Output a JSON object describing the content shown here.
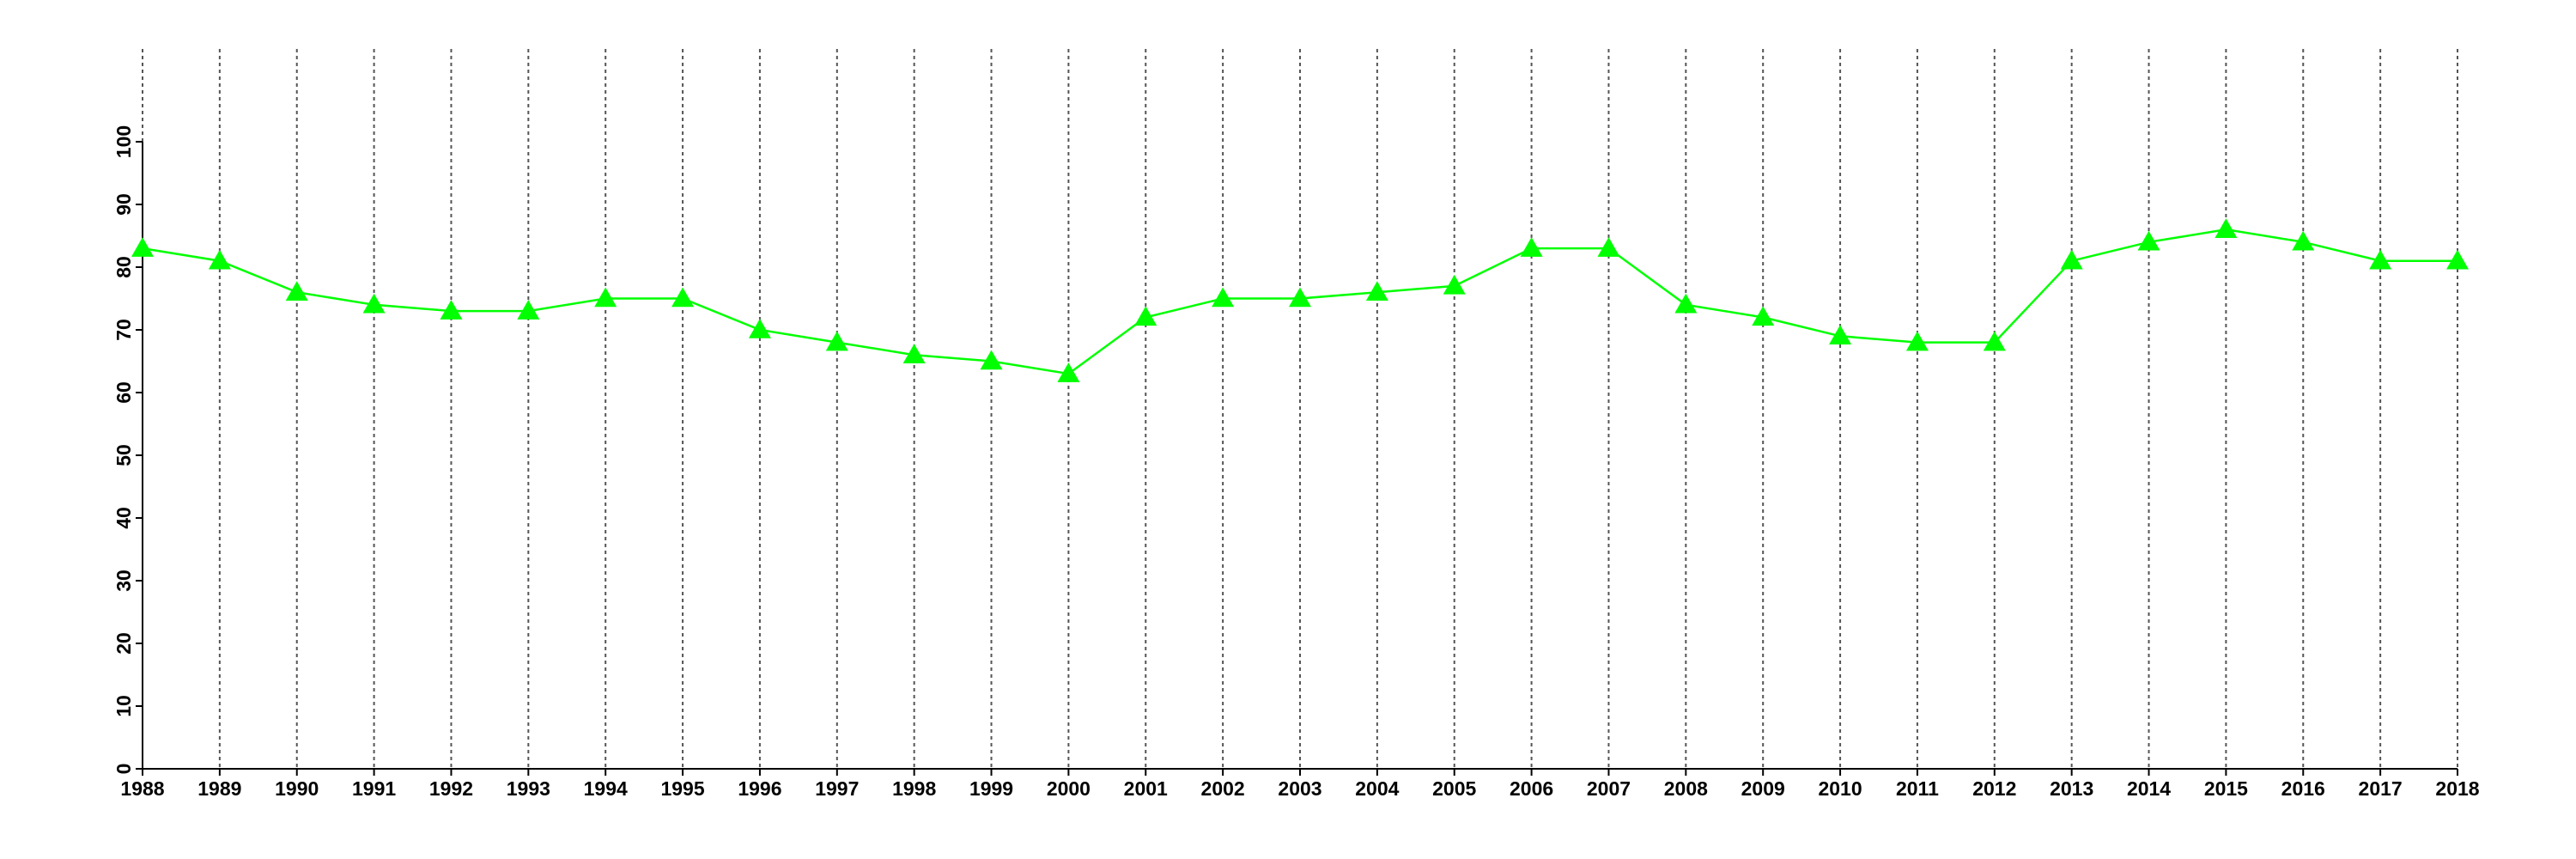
{
  "chart_data": {
    "type": "line",
    "x": [
      1988,
      1989,
      1990,
      1991,
      1992,
      1993,
      1994,
      1995,
      1996,
      1997,
      1998,
      1999,
      2000,
      2001,
      2002,
      2003,
      2004,
      2005,
      2006,
      2007,
      2008,
      2009,
      2010,
      2011,
      2012,
      2013,
      2014,
      2015,
      2016,
      2017,
      2018
    ],
    "series": [
      {
        "color": "#00ff00",
        "marker": "triangle",
        "values": [
          83,
          81,
          76,
          74,
          73,
          73,
          75,
          75,
          70,
          68,
          66,
          65,
          63,
          72,
          75,
          75,
          76,
          77,
          83,
          83,
          74,
          72,
          69,
          68,
          68,
          81,
          84,
          86,
          84,
          81,
          81
        ]
      }
    ],
    "xlim": [
      1988,
      2018
    ],
    "xticks": [
      1988,
      1989,
      1990,
      1991,
      1992,
      1993,
      1994,
      1995,
      1996,
      1997,
      1998,
      1999,
      2000,
      2001,
      2002,
      2003,
      2004,
      2005,
      2006,
      2007,
      2008,
      2009,
      2010,
      2011,
      2012,
      2013,
      2014,
      2015,
      2016,
      2017,
      2018
    ],
    "ylim": [
      0,
      100
    ],
    "yticks": [
      0,
      10,
      20,
      30,
      40,
      50,
      60,
      70,
      80,
      90,
      100
    ],
    "grid": "x"
  }
}
